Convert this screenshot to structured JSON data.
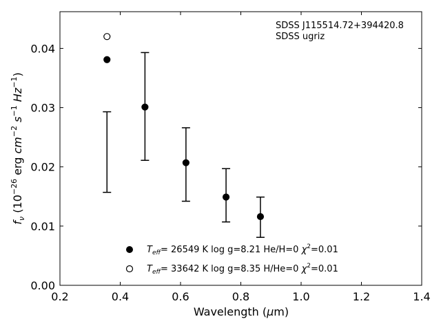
{
  "chart_data": {
    "type": "scatter",
    "annotation": [
      "SDSS J115514.72+394420.8",
      "SDSS ugriz"
    ],
    "xlabel": "Wavelength (μm)",
    "ylabel": "fν (10⁻²⁶ erg cm⁻² s⁻¹ Hz⁻¹)",
    "xlim": [
      0.2,
      1.4
    ],
    "ylim": [
      0.0,
      0.0462
    ],
    "xticks": [
      0.2,
      0.4,
      0.6,
      0.8,
      1.0,
      1.2,
      1.4
    ],
    "yticks": [
      0.0,
      0.01,
      0.02,
      0.03,
      0.04
    ],
    "observed": {
      "x": [
        0.356,
        0.482,
        0.618,
        0.751,
        0.865
      ],
      "y": [
        0.0225,
        0.0302,
        0.0204,
        0.0152,
        0.0115
      ],
      "yerr_low": [
        0.0068,
        0.0091,
        0.0062,
        0.0045,
        0.0034
      ],
      "yerr_high": [
        0.0068,
        0.0091,
        0.0062,
        0.0045,
        0.0034
      ]
    },
    "series": [
      {
        "marker": "filled-circle",
        "x": [
          0.356,
          0.482,
          0.618,
          0.751,
          0.865
        ],
        "y": [
          0.0381,
          0.0301,
          0.0207,
          0.0149,
          0.0116
        ]
      },
      {
        "marker": "open-circle",
        "x": [
          0.356
        ],
        "y": [
          0.042
        ]
      }
    ],
    "legend": [
      {
        "marker": "filled-circle",
        "text": "Teff= 26549 K  log g=8.21  He/H=0  χ²=0.01"
      },
      {
        "marker": "open-circle",
        "text": "Teff= 33642 K  log g=8.35  H/He=0  χ²=0.01"
      }
    ]
  }
}
